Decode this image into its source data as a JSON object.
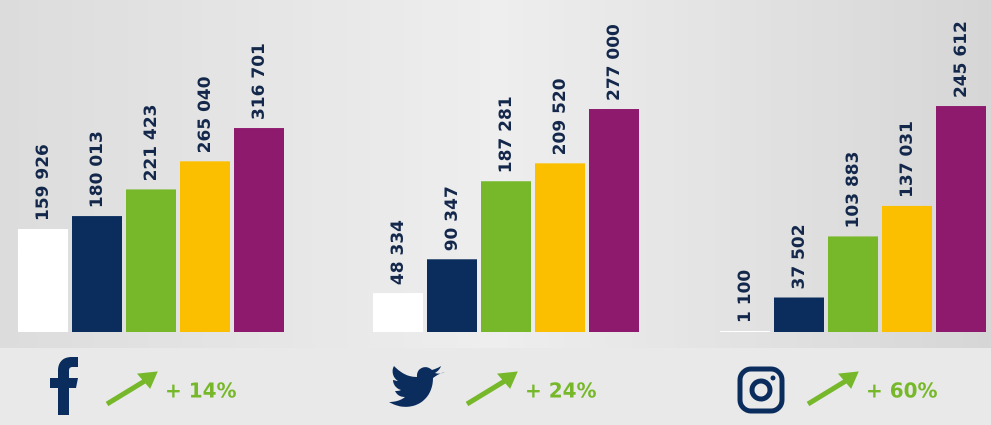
{
  "chart_data": [
    {
      "type": "bar",
      "values": [
        159926,
        180013,
        221423,
        265040,
        316701
      ],
      "value_labels": [
        "159 926",
        "180 013",
        "221 423",
        "265 040",
        "316 701"
      ],
      "colors": [
        "#ffffff",
        "#0b2d5e",
        "#76b82a",
        "#fbbf00",
        "#8e1a6e"
      ],
      "ylim": [
        0,
        500000
      ],
      "annotation": "+ 14%"
    },
    {
      "type": "bar",
      "values": [
        48334,
        90347,
        187281,
        209520,
        277000
      ],
      "value_labels": [
        "48 334",
        "90 347",
        "187 281",
        "209 520",
        "277 000"
      ],
      "colors": [
        "#ffffff",
        "#0b2d5e",
        "#76b82a",
        "#fbbf00",
        "#8e1a6e"
      ],
      "ylim": [
        0,
        400000
      ],
      "annotation": "+ 24%"
    },
    {
      "type": "bar",
      "values": [
        1100,
        37502,
        103883,
        137031,
        245612
      ],
      "value_labels": [
        "1 100",
        "37 502",
        "103 883",
        "137 031",
        "245 612"
      ],
      "colors": [
        "#ffffff",
        "#0b2d5e",
        "#76b82a",
        "#fbbf00",
        "#8e1a6e"
      ],
      "ylim": [
        0,
        350000
      ],
      "annotation": "+ 60%"
    }
  ]
}
